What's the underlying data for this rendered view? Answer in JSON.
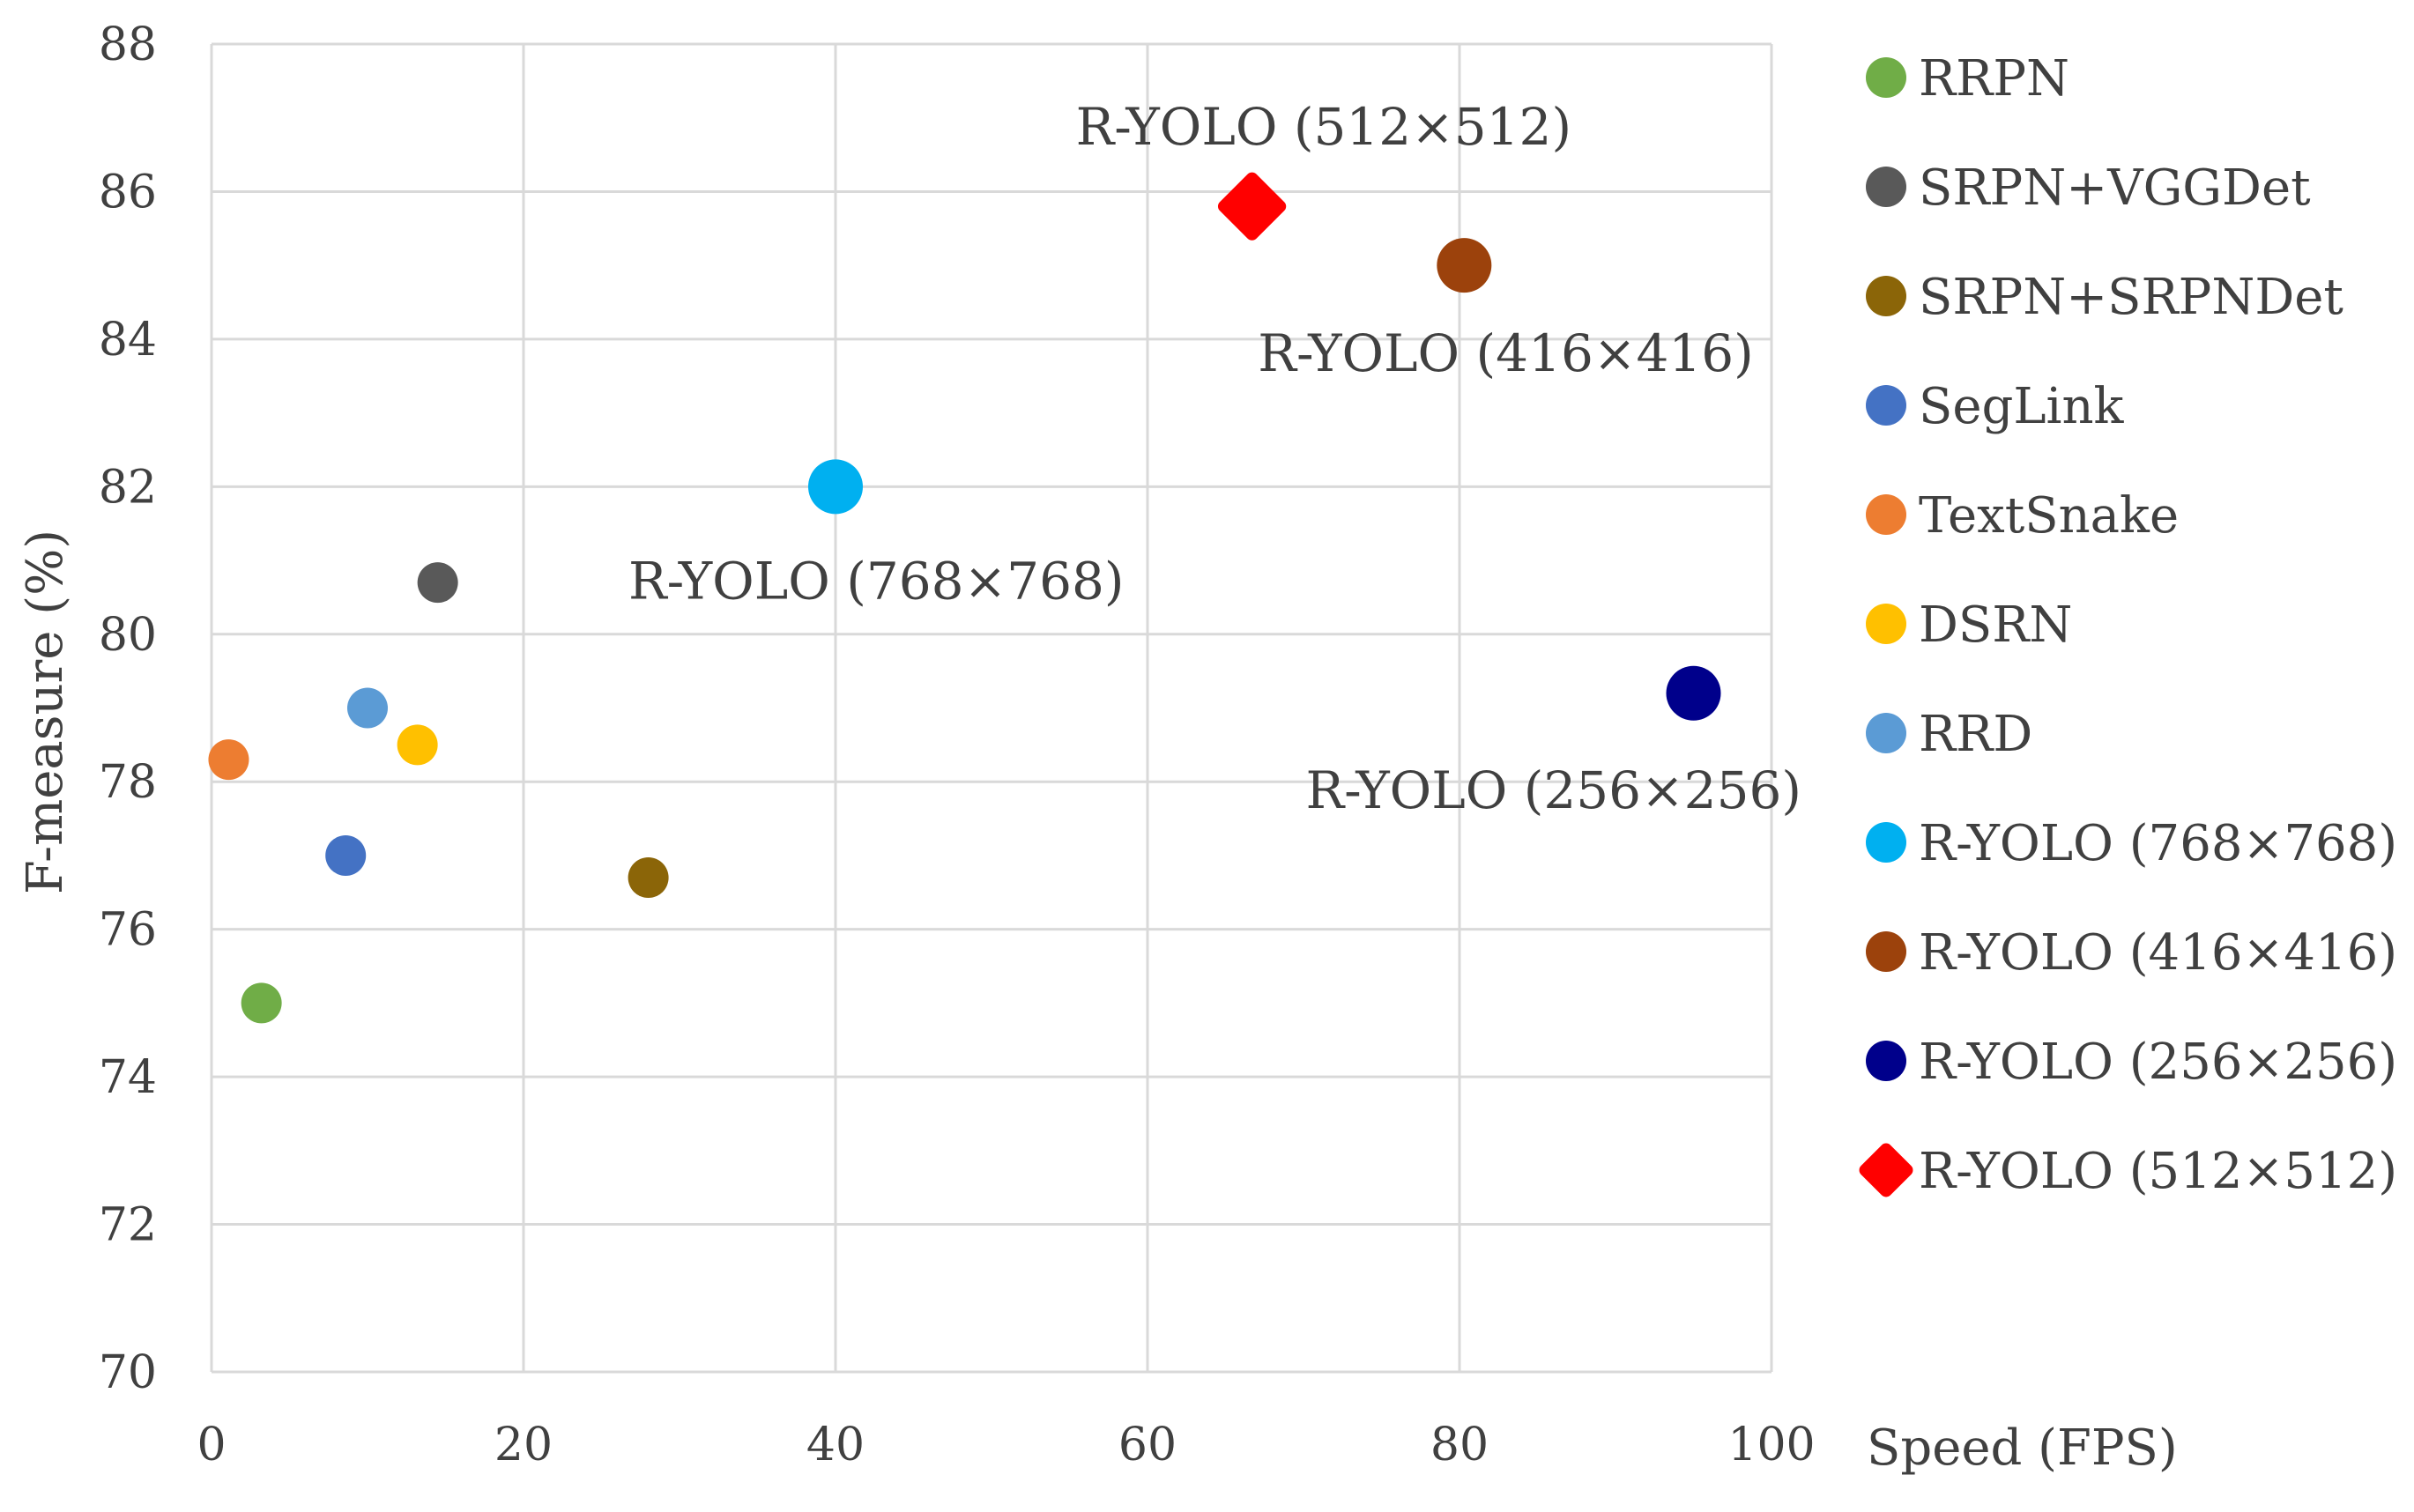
{
  "chart_data": {
    "type": "scatter",
    "title": "",
    "xlabel": "Speed (FPS)",
    "ylabel": "F-measure (%)",
    "xlim": [
      0,
      100
    ],
    "ylim": [
      70,
      88
    ],
    "xticks": [
      0,
      20,
      40,
      60,
      80,
      100
    ],
    "yticks": [
      70,
      72,
      74,
      76,
      78,
      80,
      82,
      84,
      86,
      88
    ],
    "grid": true,
    "legend_position": "right",
    "series": [
      {
        "name": "RRPN",
        "x": 3.2,
        "y": 75.0,
        "color": "#70ad47",
        "marker": "circle",
        "size": "small"
      },
      {
        "name": "SRPN+VGGDet",
        "x": 14.5,
        "y": 80.7,
        "color": "#595959",
        "marker": "circle",
        "size": "small"
      },
      {
        "name": "SRPN+SRPNDet",
        "x": 28.0,
        "y": 76.7,
        "color": "#8b6508",
        "marker": "circle",
        "size": "small"
      },
      {
        "name": "SegLink",
        "x": 8.6,
        "y": 77.0,
        "color": "#4472c4",
        "marker": "circle",
        "size": "small"
      },
      {
        "name": "TextSnake",
        "x": 1.1,
        "y": 78.3,
        "color": "#ed7d31",
        "marker": "circle",
        "size": "small"
      },
      {
        "name": "DSRN",
        "x": 13.2,
        "y": 78.5,
        "color": "#ffc000",
        "marker": "circle",
        "size": "small"
      },
      {
        "name": "RRD",
        "x": 10.0,
        "y": 79.0,
        "color": "#5b9bd5",
        "marker": "circle",
        "size": "small"
      },
      {
        "name": "R-YOLO (768×768)",
        "x": 40.0,
        "y": 82.0,
        "color": "#00b0f0",
        "marker": "circle",
        "size": "large"
      },
      {
        "name": "R-YOLO (416×416)",
        "x": 80.3,
        "y": 85.0,
        "color": "#9c420c",
        "marker": "circle",
        "size": "large"
      },
      {
        "name": "R-YOLO (256×256)",
        "x": 95.0,
        "y": 79.2,
        "color": "#00008b",
        "marker": "circle",
        "size": "large"
      },
      {
        "name": "R-YOLO (512×512)",
        "x": 66.7,
        "y": 85.8,
        "color": "#ff0000",
        "marker": "diamond",
        "size": "large"
      }
    ],
    "annotations": [
      {
        "text": "R-YOLO (512×512)",
        "series": "R-YOLO (512×512)"
      },
      {
        "text": "R-YOLO (416×416)",
        "series": "R-YOLO (416×416)"
      },
      {
        "text": "R-YOLO (768×768)",
        "series": "R-YOLO (768×768)"
      },
      {
        "text": "R-YOLO (256×256)",
        "series": "R-YOLO (256×256)"
      }
    ]
  }
}
